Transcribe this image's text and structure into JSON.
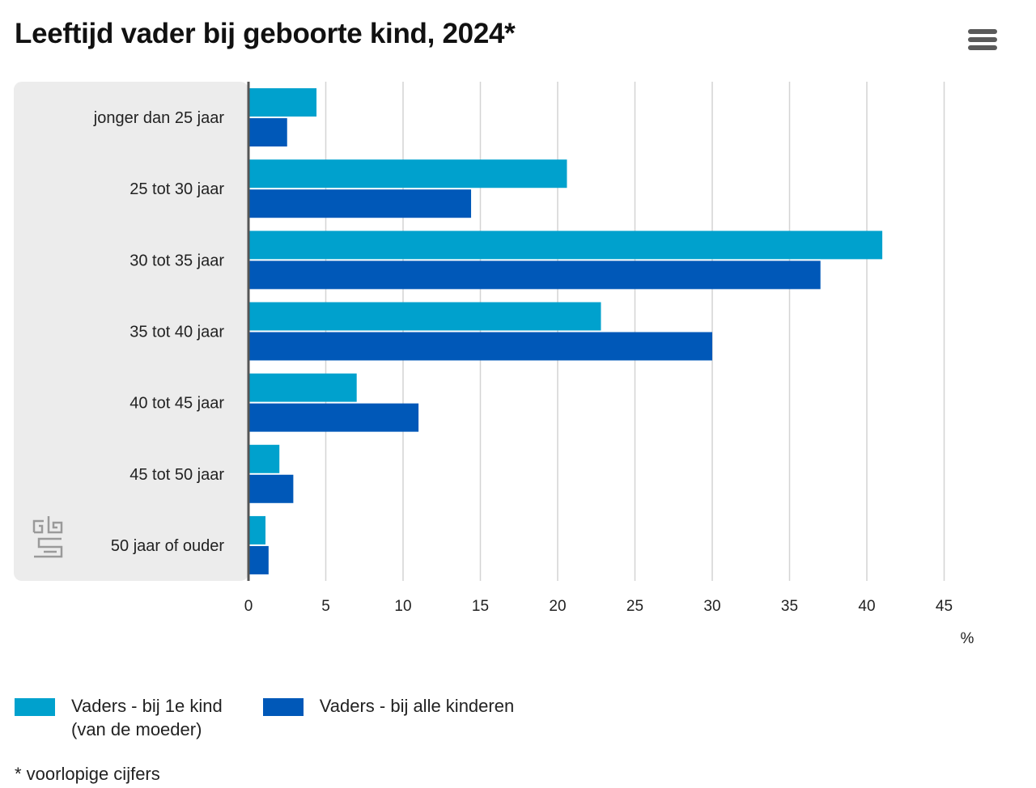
{
  "chart_data": {
    "type": "bar",
    "orientation": "horizontal",
    "title": "Leeftijd vader bij geboorte kind, 2024*",
    "categories": [
      "jonger dan 25 jaar",
      "25 tot 30 jaar",
      "30 tot 35 jaar",
      "35 tot 40 jaar",
      "40 tot 45 jaar",
      "45 tot 50 jaar",
      "50 jaar of ouder"
    ],
    "series": [
      {
        "name": "Vaders - bij 1e kind\n(van de moeder)",
        "color": "#00a1cd",
        "values": [
          4.4,
          20.6,
          41.0,
          22.8,
          7.0,
          2.0,
          1.1
        ]
      },
      {
        "name": "Vaders - bij alle kinderen",
        "color": "#0058b8",
        "values": [
          2.5,
          14.4,
          37.0,
          30.0,
          11.0,
          2.9,
          1.3
        ]
      }
    ],
    "xlim": [
      0,
      45
    ],
    "xticks": [
      0,
      5,
      10,
      15,
      20,
      25,
      30,
      35,
      40,
      45
    ],
    "xlabel": "%",
    "grid": true,
    "legend_position": "bottom-left",
    "footnote": "* voorlopige cijfers"
  },
  "colors": {
    "label_panel": "#ececec",
    "grid": "#d4d4d4",
    "axis": "#555555",
    "logo": "#9a9a9a"
  },
  "icons": {
    "menu": "hamburger-menu-icon",
    "logo": "cbs-logo"
  }
}
